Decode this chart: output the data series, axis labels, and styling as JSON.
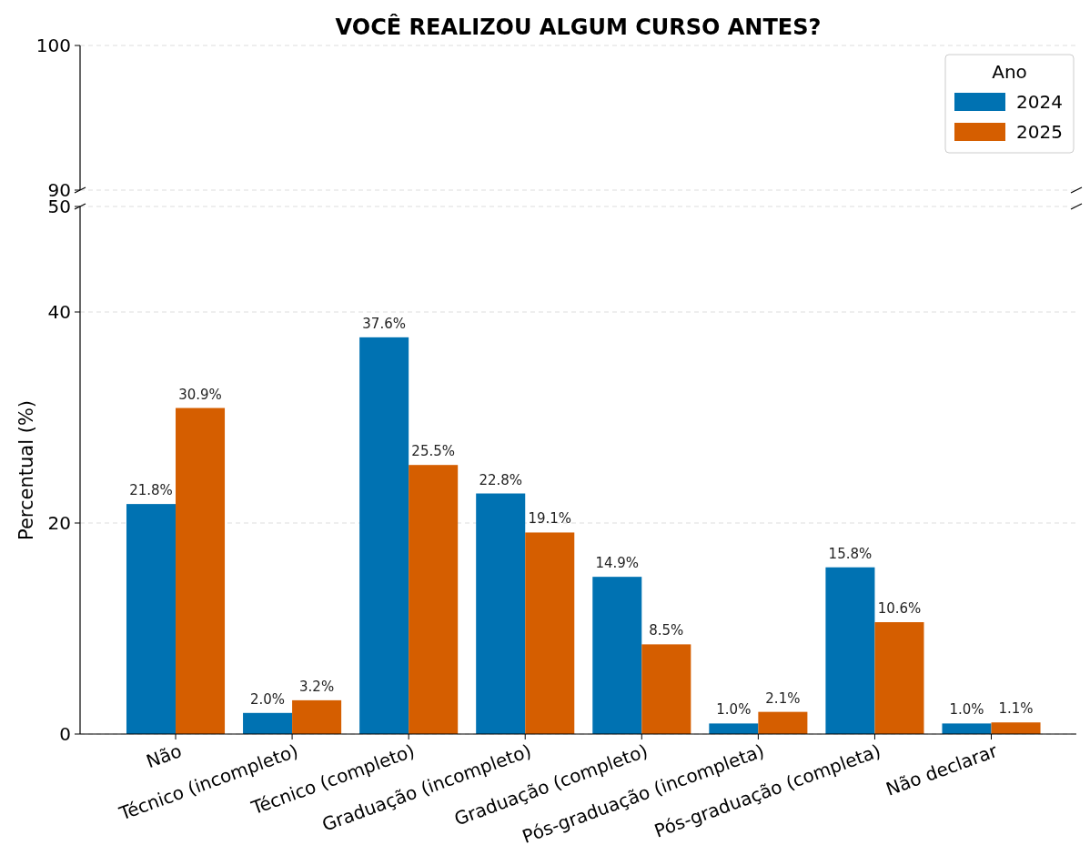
{
  "chart_data": [
    {
      "type": "bar",
      "title": "VOCÊ REALIZOU ALGUM CURSO ANTES?",
      "legend_title": "Ano",
      "legend": "top right",
      "grid": "y",
      "tick_labels": "y",
      "ylim": [
        90,
        100
      ],
      "yticks": [
        90,
        100
      ],
      "series": [
        {
          "name": "2024",
          "color": "#0072b2",
          "values": [
            null,
            null,
            null,
            null,
            null,
            null,
            null,
            null
          ]
        },
        {
          "name": "2025",
          "color": "#d55e00",
          "values": [
            null,
            null,
            null,
            null,
            null,
            null,
            null,
            null
          ]
        }
      ]
    },
    {
      "type": "bar",
      "ylabel": "Percentual (%)",
      "grid": "y",
      "categories": [
        "Não",
        "Técnico (incompleto)",
        "Técnico (completo)",
        "Graduação (incompleto)",
        "Graduação (completo)",
        "Pós-graduação (incompleta)",
        "Pós-graduação (completa)",
        "Não declarar"
      ],
      "ylim": [
        0,
        50
      ],
      "yticks": [
        0,
        20,
        40,
        50
      ],
      "series": [
        {
          "color": "#0072b2",
          "values": [
            21.8,
            2.0,
            37.6,
            22.8,
            14.9,
            1.0,
            15.8,
            1.0
          ],
          "value_labels": [
            "21.8%",
            "2.0%",
            "37.6%",
            "22.8%",
            "14.9%",
            "1.0%",
            "15.8%",
            "1.0%"
          ]
        },
        {
          "color": "#d55e00",
          "values": [
            30.9,
            3.2,
            25.5,
            19.1,
            8.5,
            2.1,
            10.6,
            1.1
          ],
          "value_labels": [
            "30.9%",
            "3.2%",
            "25.5%",
            "19.1%",
            "8.5%",
            "2.1%",
            "10.6%",
            "1.1%"
          ]
        }
      ]
    }
  ]
}
